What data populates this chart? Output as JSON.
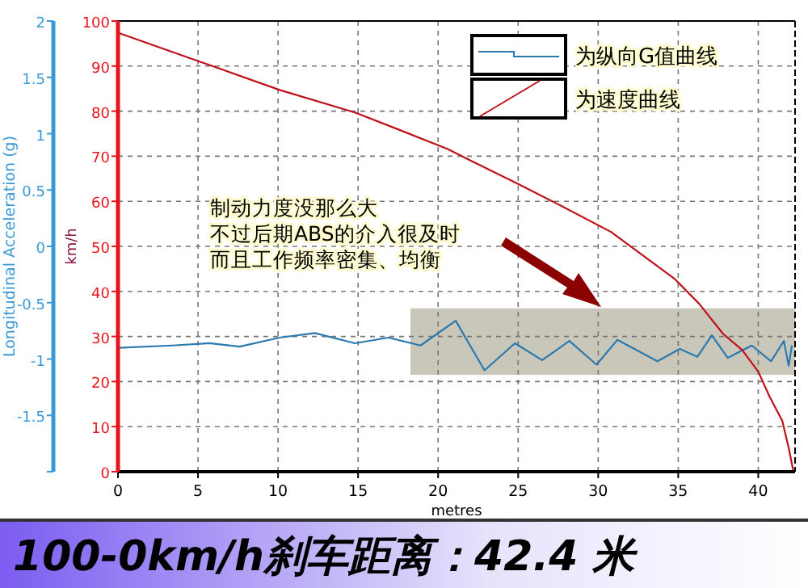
{
  "chart_data": {
    "type": "line",
    "title": "100-0km/h刹车距离：42.4 米",
    "xlabel": "metres",
    "ylabel": "km/h",
    "y2label": "Longitudinal Acceleration (g)",
    "xlim": [
      0,
      42.3
    ],
    "xticks": [
      0,
      5,
      10,
      15,
      20,
      25,
      30,
      35,
      40
    ],
    "ylim": [
      0,
      100
    ],
    "yticks": [
      0,
      10,
      20,
      30,
      40,
      50,
      60,
      70,
      80,
      90,
      100
    ],
    "y2lim": [
      -2,
      2
    ],
    "y2ticks": [
      {
        "value": -2,
        "label": null
      },
      -1.5,
      -1,
      -0.5,
      0,
      0.5,
      1,
      1.5,
      2
    ],
    "grid": true,
    "legend": "top right",
    "line_style": "solid",
    "marker": "none",
    "series": [
      {
        "name": "为纵向G值曲线",
        "color": "#2a7ab0",
        "axis": "y2",
        "x": [
          0,
          3.4,
          5.7,
          7.6,
          10.1,
          12.3,
          14.8,
          16.9,
          18.9,
          21.1,
          22.9,
          24.8,
          26.5,
          28.2,
          29.9,
          31.2,
          33.7,
          35.1,
          36.2,
          37.1,
          38.1,
          39.6,
          40.8,
          41.6,
          41.9,
          42.1
        ],
        "values": [
          -0.9,
          -0.88,
          -0.86,
          -0.89,
          -0.81,
          -0.77,
          -0.86,
          -0.81,
          -0.88,
          -0.66,
          -1.1,
          -0.86,
          -1.01,
          -0.84,
          -1.05,
          -0.83,
          -1.02,
          -0.91,
          -0.98,
          -0.79,
          -0.99,
          -0.88,
          -1.02,
          -0.84,
          -1.06,
          -0.88
        ]
      },
      {
        "name": "为速度曲线",
        "color": "#c0101a",
        "axis": "y",
        "x": [
          0,
          5.1,
          10.1,
          14.8,
          17.4,
          20.6,
          22.1,
          24.8,
          27.8,
          30.8,
          32.1,
          34.8,
          36.3,
          37.8,
          39,
          40,
          40.7,
          41.5,
          41.9,
          42.2
        ],
        "values": [
          97.4,
          91,
          84.7,
          79.7,
          76.1,
          71.6,
          68.9,
          64.2,
          58.8,
          53.2,
          49.8,
          42.7,
          37.3,
          30.6,
          27,
          22.2,
          16.7,
          11.3,
          5.3,
          0
        ]
      }
    ],
    "bands": [
      {
        "axis": "y2",
        "from": -1.14,
        "to": -0.55,
        "color": "#c9c7b9"
      }
    ],
    "annotations": [
      "制动力度没那么大",
      "不过后期ABS的介入很及时",
      "而且工作频率密集、均衡"
    ]
  }
}
